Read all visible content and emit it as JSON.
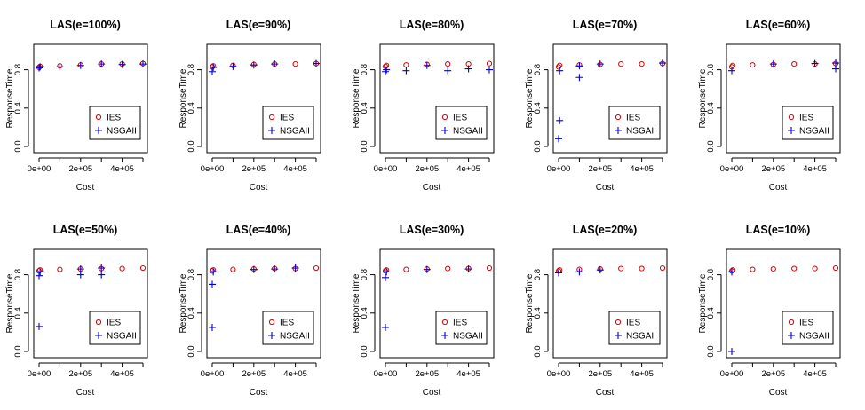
{
  "colors": {
    "ies": "#dd0000",
    "nsga": "#0000cc"
  },
  "chart_data": [
    {
      "type": "scatter",
      "title": "LAS(e=100%)",
      "xlabel": "Cost",
      "ylabel": "ResponseTime",
      "xlim": [
        0,
        500000
      ],
      "ylim": [
        0,
        1
      ],
      "xticks": [
        "0e+00",
        "2e+05",
        "4e+05"
      ],
      "yticks": [
        "0.0",
        "0.4",
        "0.8"
      ],
      "legend": [
        "IES",
        "NSGAII"
      ],
      "legend_position": "bottom-right",
      "series": [
        {
          "name": "IES",
          "marker": "circle",
          "x": [
            0,
            5000,
            100000,
            200000,
            300000,
            400000,
            500000
          ],
          "y": [
            0.825,
            0.835,
            0.84,
            0.85,
            0.86,
            0.86,
            0.865
          ]
        },
        {
          "name": "NSGAII",
          "marker": "plus",
          "x": [
            0,
            5000,
            100000,
            200000,
            300000,
            400000,
            500000
          ],
          "y": [
            0.82,
            0.83,
            0.83,
            0.845,
            0.86,
            0.855,
            0.86
          ]
        }
      ]
    },
    {
      "type": "scatter",
      "title": "LAS(e=90%)",
      "xlabel": "Cost",
      "ylabel": "ResponseTime",
      "xlim": [
        0,
        500000
      ],
      "ylim": [
        0,
        1
      ],
      "xticks": [
        "0e+00",
        "2e+05",
        "4e+05"
      ],
      "yticks": [
        "0.0",
        "0.4",
        "0.8"
      ],
      "legend": [
        "IES",
        "NSGAII"
      ],
      "legend_position": "bottom-right",
      "series": [
        {
          "name": "IES",
          "marker": "circle",
          "x": [
            0,
            5000,
            100000,
            200000,
            300000,
            400000,
            500000
          ],
          "y": [
            0.83,
            0.84,
            0.845,
            0.855,
            0.86,
            0.86,
            0.865
          ]
        },
        {
          "name": "NSGAII",
          "marker": "plus",
          "x": [
            0,
            5000,
            100000,
            200000,
            300000,
            500000
          ],
          "y": [
            0.78,
            0.825,
            0.835,
            0.85,
            0.86,
            0.865
          ]
        }
      ]
    },
    {
      "type": "scatter",
      "title": "LAS(e=80%)",
      "xlabel": "Cost",
      "ylabel": "ResponseTime",
      "xlim": [
        0,
        500000
      ],
      "ylim": [
        0,
        1
      ],
      "xticks": [
        "0e+00",
        "2e+05",
        "4e+05"
      ],
      "yticks": [
        "0.0",
        "0.4",
        "0.8"
      ],
      "legend": [
        "IES",
        "NSGAII"
      ],
      "legend_position": "bottom-right",
      "series": [
        {
          "name": "IES",
          "marker": "circle",
          "x": [
            0,
            5000,
            100000,
            200000,
            300000,
            400000,
            500000
          ],
          "y": [
            0.835,
            0.845,
            0.85,
            0.855,
            0.86,
            0.86,
            0.865
          ]
        },
        {
          "name": "NSGAII",
          "marker": "plus",
          "x": [
            0,
            5000,
            100000,
            200000,
            300000,
            400000,
            500000
          ],
          "y": [
            0.78,
            0.8,
            0.79,
            0.845,
            0.79,
            0.81,
            0.8
          ]
        }
      ]
    },
    {
      "type": "scatter",
      "title": "LAS(e=70%)",
      "xlabel": "Cost",
      "ylabel": "ResponseTime",
      "xlim": [
        0,
        500000
      ],
      "ylim": [
        0,
        1
      ],
      "xticks": [
        "0e+00",
        "2e+05",
        "4e+05"
      ],
      "yticks": [
        "0.0",
        "0.4",
        "0.8"
      ],
      "legend": [
        "IES",
        "NSGAII"
      ],
      "legend_position": "bottom-right",
      "series": [
        {
          "name": "IES",
          "marker": "circle",
          "x": [
            0,
            5000,
            100000,
            200000,
            300000,
            400000,
            500000
          ],
          "y": [
            0.83,
            0.845,
            0.85,
            0.855,
            0.86,
            0.86,
            0.865
          ]
        },
        {
          "name": "NSGAII",
          "marker": "plus",
          "x": [
            0,
            5000,
            5000,
            100000,
            100000,
            200000,
            500000
          ],
          "y": [
            0.08,
            0.27,
            0.79,
            0.72,
            0.84,
            0.86,
            0.87
          ]
        }
      ]
    },
    {
      "type": "scatter",
      "title": "LAS(e=60%)",
      "xlabel": "Cost",
      "ylabel": "ResponseTime",
      "xlim": [
        0,
        500000
      ],
      "ylim": [
        0,
        1
      ],
      "xticks": [
        "0e+00",
        "2e+05",
        "4e+05"
      ],
      "yticks": [
        "0.0",
        "0.4",
        "0.8"
      ],
      "legend": [
        "IES",
        "NSGAII"
      ],
      "legend_position": "bottom-right",
      "series": [
        {
          "name": "IES",
          "marker": "circle",
          "x": [
            0,
            5000,
            100000,
            200000,
            300000,
            400000,
            500000
          ],
          "y": [
            0.83,
            0.845,
            0.85,
            0.855,
            0.86,
            0.86,
            0.865
          ]
        },
        {
          "name": "NSGAII",
          "marker": "plus",
          "x": [
            0,
            200000,
            400000,
            500000,
            500000
          ],
          "y": [
            0.79,
            0.86,
            0.865,
            0.81,
            0.87
          ]
        }
      ]
    },
    {
      "type": "scatter",
      "title": "LAS(e=50%)",
      "xlabel": "Cost",
      "ylabel": "ResponseTime",
      "xlim": [
        0,
        500000
      ],
      "ylim": [
        0,
        1
      ],
      "xticks": [
        "0e+00",
        "2e+05",
        "4e+05"
      ],
      "yticks": [
        "0.0",
        "0.4",
        "0.8"
      ],
      "legend": [
        "IES",
        "NSGAII"
      ],
      "legend_position": "bottom-right",
      "series": [
        {
          "name": "IES",
          "marker": "circle",
          "x": [
            0,
            5000,
            100000,
            200000,
            300000,
            400000,
            500000
          ],
          "y": [
            0.84,
            0.85,
            0.855,
            0.86,
            0.865,
            0.865,
            0.87
          ]
        },
        {
          "name": "NSGAII",
          "marker": "plus",
          "x": [
            0,
            0,
            5000,
            200000,
            200000,
            300000,
            300000
          ],
          "y": [
            0.26,
            0.79,
            0.83,
            0.8,
            0.86,
            0.8,
            0.87
          ]
        }
      ]
    },
    {
      "type": "scatter",
      "title": "LAS(e=40%)",
      "xlabel": "Cost",
      "ylabel": "ResponseTime",
      "xlim": [
        0,
        500000
      ],
      "ylim": [
        0,
        1
      ],
      "xticks": [
        "0e+00",
        "2e+05",
        "4e+05"
      ],
      "yticks": [
        "0.0",
        "0.4",
        "0.8"
      ],
      "legend": [
        "IES",
        "NSGAII"
      ],
      "legend_position": "bottom-right",
      "series": [
        {
          "name": "IES",
          "marker": "circle",
          "x": [
            0,
            5000,
            100000,
            200000,
            300000,
            400000,
            500000
          ],
          "y": [
            0.84,
            0.85,
            0.855,
            0.86,
            0.865,
            0.865,
            0.87
          ]
        },
        {
          "name": "NSGAII",
          "marker": "plus",
          "x": [
            0,
            0,
            5000,
            200000,
            300000,
            400000
          ],
          "y": [
            0.25,
            0.7,
            0.83,
            0.855,
            0.86,
            0.87
          ]
        }
      ]
    },
    {
      "type": "scatter",
      "title": "LAS(e=30%)",
      "xlabel": "Cost",
      "ylabel": "ResponseTime",
      "xlim": [
        0,
        500000
      ],
      "ylim": [
        0,
        1
      ],
      "xticks": [
        "0e+00",
        "2e+05",
        "4e+05"
      ],
      "yticks": [
        "0.0",
        "0.4",
        "0.8"
      ],
      "legend": [
        "IES",
        "NSGAII"
      ],
      "legend_position": "bottom-right",
      "series": [
        {
          "name": "IES",
          "marker": "circle",
          "x": [
            0,
            5000,
            100000,
            200000,
            300000,
            400000,
            500000
          ],
          "y": [
            0.84,
            0.85,
            0.855,
            0.86,
            0.865,
            0.865,
            0.87
          ]
        },
        {
          "name": "NSGAII",
          "marker": "plus",
          "x": [
            0,
            0,
            5000,
            200000,
            400000
          ],
          "y": [
            0.25,
            0.77,
            0.83,
            0.855,
            0.86
          ]
        }
      ]
    },
    {
      "type": "scatter",
      "title": "LAS(e=20%)",
      "xlabel": "Cost",
      "ylabel": "ResponseTime",
      "xlim": [
        0,
        500000
      ],
      "ylim": [
        0,
        1
      ],
      "xticks": [
        "0e+00",
        "2e+05",
        "4e+05"
      ],
      "yticks": [
        "0.0",
        "0.4",
        "0.8"
      ],
      "legend": [
        "IES",
        "NSGAII"
      ],
      "legend_position": "bottom-right",
      "series": [
        {
          "name": "IES",
          "marker": "circle",
          "x": [
            0,
            5000,
            100000,
            200000,
            300000,
            400000,
            500000
          ],
          "y": [
            0.84,
            0.85,
            0.855,
            0.86,
            0.865,
            0.865,
            0.87
          ]
        },
        {
          "name": "NSGAII",
          "marker": "plus",
          "x": [
            0,
            100000,
            200000
          ],
          "y": [
            0.82,
            0.83,
            0.85
          ]
        }
      ]
    },
    {
      "type": "scatter",
      "title": "LAS(e=10%)",
      "xlabel": "Cost",
      "ylabel": "ResponseTime",
      "xlim": [
        0,
        500000
      ],
      "ylim": [
        0,
        1
      ],
      "xticks": [
        "0e+00",
        "2e+05",
        "4e+05"
      ],
      "yticks": [
        "0.0",
        "0.4",
        "0.8"
      ],
      "legend": [
        "IES",
        "NSGAII"
      ],
      "legend_position": "bottom-right",
      "series": [
        {
          "name": "IES",
          "marker": "circle",
          "x": [
            0,
            5000,
            100000,
            200000,
            300000,
            400000,
            500000
          ],
          "y": [
            0.84,
            0.85,
            0.855,
            0.86,
            0.865,
            0.865,
            0.87
          ]
        },
        {
          "name": "NSGAII",
          "marker": "plus",
          "x": [
            0,
            0
          ],
          "y": [
            0.0,
            0.83
          ]
        }
      ]
    }
  ]
}
